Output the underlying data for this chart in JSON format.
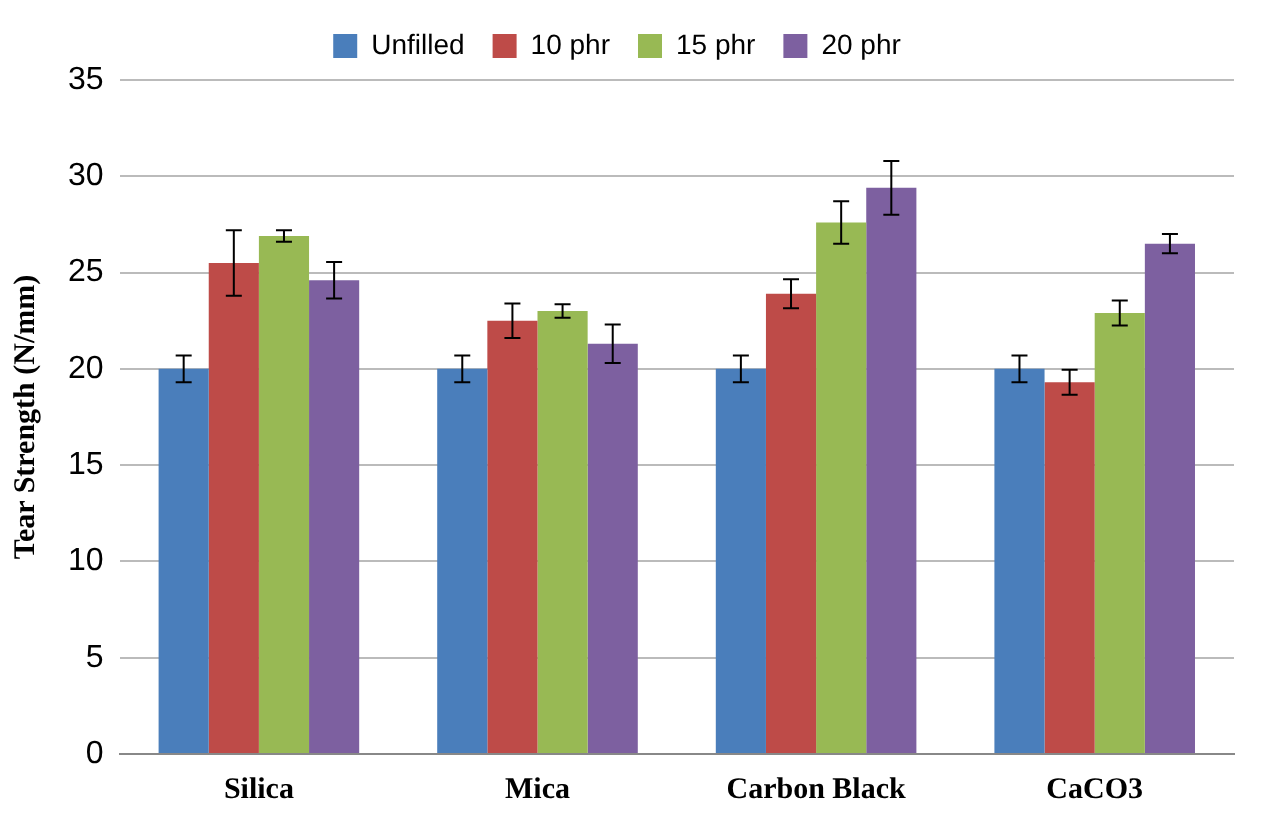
{
  "chart_data": {
    "type": "bar",
    "ylabel": "Tear Strength (N/mm)",
    "categories": [
      "Silica",
      "Mica",
      "Carbon Black",
      "CaCO3"
    ],
    "series": [
      {
        "name": "Unfilled",
        "color": "#4a7ebb",
        "values": [
          20,
          20,
          20,
          20
        ],
        "errors": [
          0.7,
          0.7,
          0.7,
          0.7
        ]
      },
      {
        "name": "10 phr",
        "color": "#be4b48",
        "values": [
          25.5,
          22.5,
          23.9,
          19.3
        ],
        "errors": [
          1.7,
          0.9,
          0.75,
          0.65
        ]
      },
      {
        "name": "15 phr",
        "color": "#98b954",
        "values": [
          26.9,
          23.0,
          27.6,
          22.9
        ],
        "errors": [
          0.3,
          0.35,
          1.1,
          0.65
        ]
      },
      {
        "name": "20 phr",
        "color": "#7d60a0",
        "values": [
          24.6,
          21.3,
          29.4,
          26.5
        ],
        "errors": [
          0.95,
          1.0,
          1.4,
          0.5
        ]
      }
    ],
    "ylim": [
      0,
      35
    ],
    "yticks": [
      0,
      5,
      10,
      15,
      20,
      25,
      30,
      35
    ],
    "grid": "y",
    "legend": "top"
  }
}
